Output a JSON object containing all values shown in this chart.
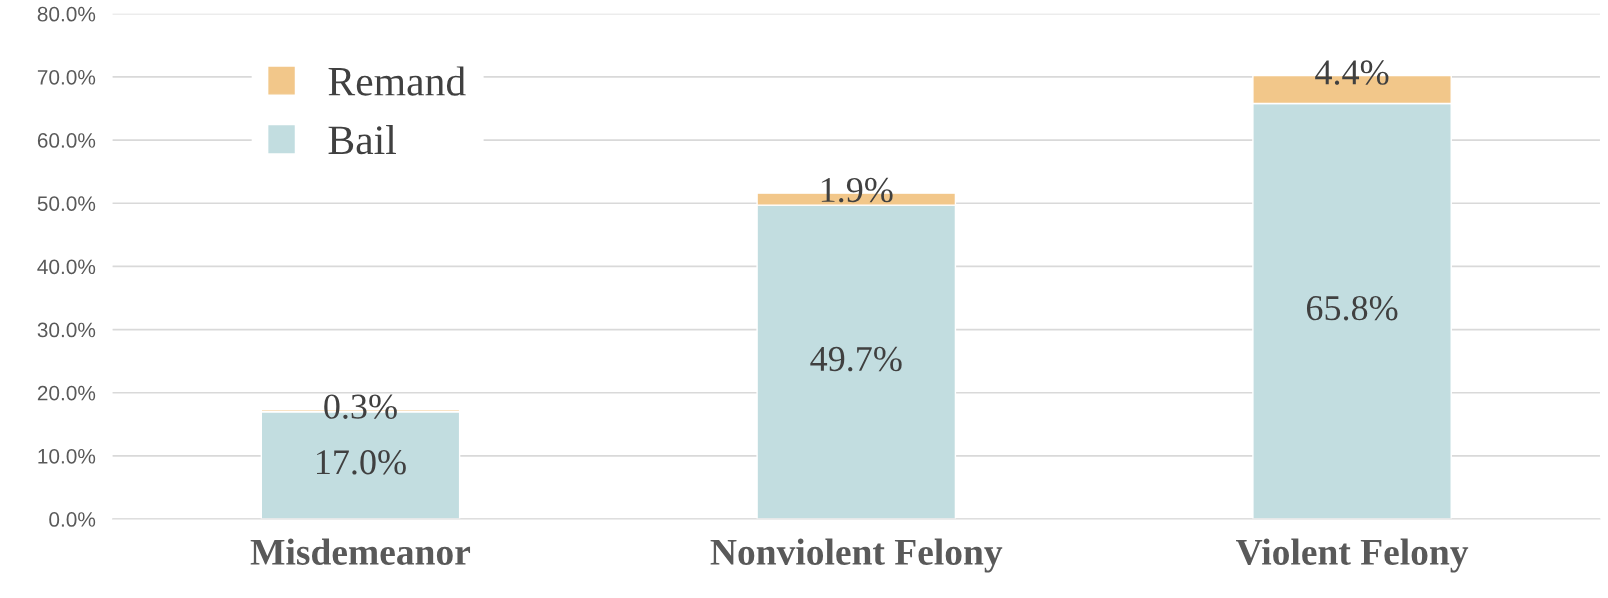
{
  "chart_data": {
    "type": "bar",
    "stacked": true,
    "categories": [
      "Misdemeanor",
      "Nonviolent Felony",
      "Violent Felony"
    ],
    "series": [
      {
        "name": "Bail",
        "color": "#c2dde0",
        "values": [
          17.0,
          49.7,
          65.8
        ],
        "value_labels": [
          "17.0%",
          "49.7%",
          "65.8%"
        ]
      },
      {
        "name": "Remand",
        "color": "#f2c78a",
        "values": [
          0.3,
          1.9,
          4.4
        ],
        "value_labels": [
          "0.3%",
          "1.9%",
          "4.4%"
        ]
      }
    ],
    "ylim": [
      0,
      80
    ],
    "yticks": [
      {
        "value": 0,
        "label": "0.0%"
      },
      {
        "value": 10,
        "label": "10.0%"
      },
      {
        "value": 20,
        "label": "20.0%"
      },
      {
        "value": 30,
        "label": "30.0%"
      },
      {
        "value": 40,
        "label": "40.0%"
      },
      {
        "value": 50,
        "label": "50.0%"
      },
      {
        "value": 60,
        "label": "60.0%"
      },
      {
        "value": 70,
        "label": "70.0%"
      },
      {
        "value": 80,
        "label": "80.0%"
      }
    ],
    "grid": "y",
    "legend": "top left"
  }
}
